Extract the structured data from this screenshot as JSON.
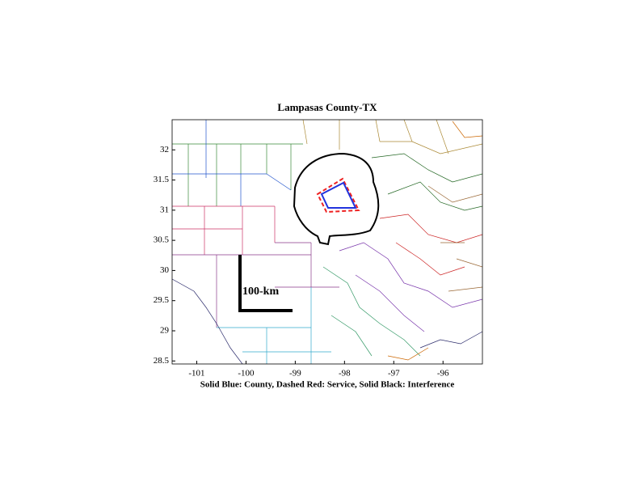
{
  "chart_data": {
    "type": "map",
    "title": "Lampasas County-TX",
    "xlabel": "Solid Blue: County, Dashed Red: Service, Solid Black: Interference",
    "annotation": "100-km",
    "xlim": [
      -101.5,
      -95.2
    ],
    "xticks": [
      -101,
      -100,
      -99,
      -98,
      -97,
      -96
    ],
    "ylim": [
      28.45,
      32.5
    ],
    "yticks": [
      28.5,
      29,
      29.5,
      30,
      30.5,
      31,
      31.5,
      32
    ]
  }
}
